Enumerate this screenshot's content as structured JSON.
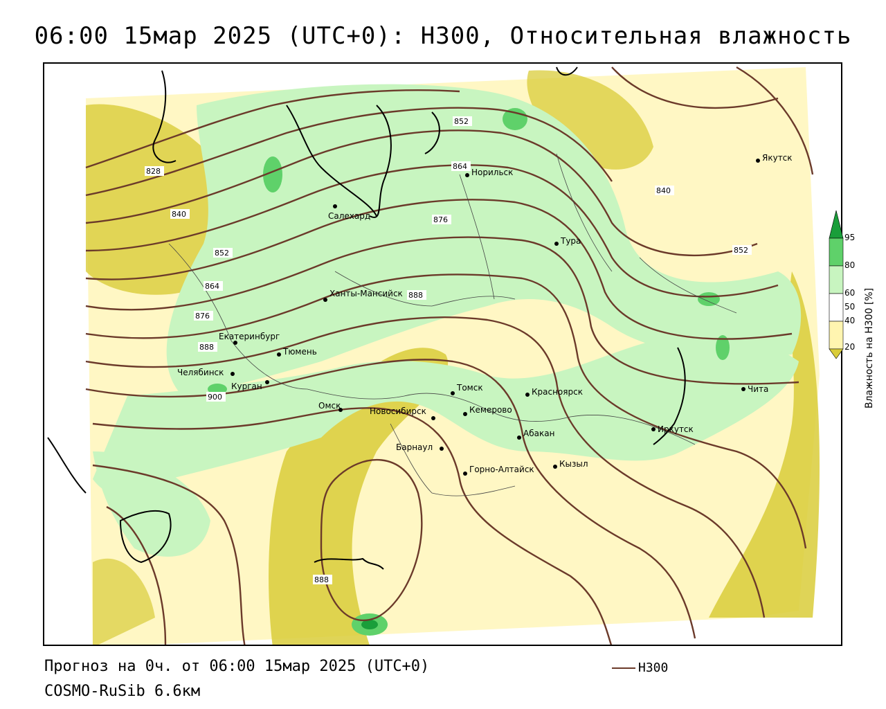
{
  "title": "06:00 15мар 2025 (UTC+0): H300, Относительная влажность",
  "footer": {
    "forecast": "Прогноз на 0ч. от 06:00 15мар 2025 (UTC+0)",
    "model": "COSMO-RuSib 6.6км"
  },
  "legend": {
    "line_label": "H300",
    "line_color": "#6b3a2a"
  },
  "colorbar": {
    "title": "Влажность на H300 [%]",
    "ticks": [
      "95",
      "80",
      "60",
      "50",
      "40",
      "20"
    ],
    "colors": {
      "dark_green": "#1a9e3a",
      "green": "#5fd16a",
      "light_green": "#c8f5c0",
      "white": "#ffffff",
      "light_yellow": "#fff5b0",
      "yellow": "#d9cc3a"
    }
  },
  "isoline_labels": [
    "828",
    "840",
    "852",
    "864",
    "876",
    "888",
    "852",
    "864",
    "876",
    "840",
    "852",
    "888",
    "888",
    "900"
  ],
  "cities": [
    {
      "name": "Якутск"
    },
    {
      "name": "Норильск"
    },
    {
      "name": "Салехард"
    },
    {
      "name": "Тура"
    },
    {
      "name": "Ханты-Мансийск"
    },
    {
      "name": "Екатеринбург"
    },
    {
      "name": "Тюмень"
    },
    {
      "name": "Челябинск"
    },
    {
      "name": "Курган"
    },
    {
      "name": "Омск"
    },
    {
      "name": "Новосибирск"
    },
    {
      "name": "Томск"
    },
    {
      "name": "Кемерово"
    },
    {
      "name": "Красноярск"
    },
    {
      "name": "Абакан"
    },
    {
      "name": "Барнаул"
    },
    {
      "name": "Горно-Алтайск"
    },
    {
      "name": "Кызыл"
    },
    {
      "name": "Иркутск"
    },
    {
      "name": "Чита"
    }
  ]
}
